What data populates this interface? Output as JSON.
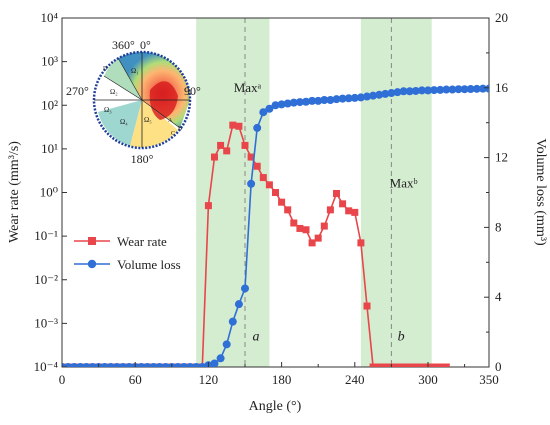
{
  "chart_data": {
    "type": "line",
    "xlabel": "Angle (°)",
    "y_left_label": "Wear rate (mm³/s)",
    "y_right_label": "Volume loss (mm³)",
    "xlim": [
      0,
      350
    ],
    "x_ticks": [
      0,
      60,
      120,
      180,
      240,
      300,
      350
    ],
    "y_left_log": true,
    "y_left_lim": [
      0.0001,
      10000
    ],
    "y_left_ticks": [
      {
        "value": 0.0001,
        "label": "10⁻⁴"
      },
      {
        "value": 0.001,
        "label": "10⁻³"
      },
      {
        "value": 0.01,
        "label": "10⁻²"
      },
      {
        "value": 0.1,
        "label": "10⁻¹"
      },
      {
        "value": 1,
        "label": "10⁰"
      },
      {
        "value": 10,
        "label": "10¹"
      },
      {
        "value": 100,
        "label": "10²"
      },
      {
        "value": 1000,
        "label": "10³"
      },
      {
        "value": 10000,
        "label": "10⁴"
      }
    ],
    "y_right_lim": [
      0,
      20
    ],
    "y_right_ticks": [
      0,
      4,
      8,
      12,
      16,
      20
    ],
    "shaded_regions": [
      {
        "from": 110,
        "to": 170,
        "color": "#d4ecd0"
      },
      {
        "from": 245,
        "to": 303,
        "color": "#d4ecd0"
      }
    ],
    "dashed_lines": [
      150,
      270
    ],
    "annotations": [
      {
        "text": "Maxᵃ",
        "x": 152,
        "y_log": 200
      },
      {
        "text": "Maxᵇ",
        "x": 280,
        "y_log": 1.3
      },
      {
        "text": "a",
        "x": 159,
        "y_log": 0.0004
      },
      {
        "text": "b",
        "x": 278,
        "y_log": 0.0004
      }
    ],
    "series": [
      {
        "name": "Wear rate",
        "axis": "left",
        "color": "#e8464a",
        "marker": "square",
        "x": [
          0,
          5,
          10,
          15,
          20,
          25,
          30,
          35,
          40,
          45,
          50,
          55,
          60,
          65,
          70,
          75,
          80,
          85,
          90,
          95,
          100,
          105,
          110,
          115,
          120,
          125,
          130,
          135,
          140,
          145,
          150,
          155,
          160,
          165,
          170,
          175,
          180,
          185,
          190,
          195,
          200,
          205,
          210,
          215,
          220,
          225,
          230,
          235,
          240,
          245,
          250,
          255,
          260,
          265,
          270,
          275,
          280,
          285,
          290,
          295,
          300,
          305,
          310,
          315
        ],
        "y": [
          0.0001,
          0.0001,
          0.0001,
          0.0001,
          0.0001,
          0.0001,
          0.0001,
          0.0001,
          0.0001,
          0.0001,
          0.0001,
          0.0001,
          0.0001,
          0.0001,
          0.0001,
          0.0001,
          0.0001,
          0.0001,
          0.0001,
          0.0001,
          0.0001,
          0.0001,
          0.0001,
          0.0001,
          0.5,
          6.5,
          12,
          9,
          35,
          33,
          12,
          6.5,
          4,
          2.2,
          1.5,
          1,
          0.6,
          0.4,
          0.2,
          0.15,
          0.14,
          0.07,
          0.09,
          0.17,
          0.4,
          0.95,
          0.55,
          0.38,
          0.35,
          0.07,
          0.0025,
          0.0001,
          0.0001,
          0.0001,
          0.0001,
          0.0001,
          0.0001,
          0.0001,
          0.0001,
          0.0001,
          0.0001,
          0.0001,
          0.0001,
          0.0001
        ]
      },
      {
        "name": "Volume loss",
        "axis": "right",
        "color": "#2f6fd6",
        "marker": "circle",
        "x": [
          0,
          5,
          10,
          15,
          20,
          25,
          30,
          35,
          40,
          45,
          50,
          55,
          60,
          65,
          70,
          75,
          80,
          85,
          90,
          95,
          100,
          105,
          110,
          115,
          120,
          125,
          130,
          135,
          140,
          145,
          150,
          155,
          160,
          165,
          170,
          175,
          180,
          185,
          190,
          195,
          200,
          205,
          210,
          215,
          220,
          225,
          230,
          235,
          240,
          245,
          250,
          255,
          260,
          265,
          270,
          275,
          280,
          285,
          290,
          295,
          300,
          305,
          310,
          315,
          320,
          325,
          330,
          335,
          340,
          345,
          350
        ],
        "y": [
          0,
          0,
          0,
          0,
          0,
          0,
          0,
          0,
          0,
          0,
          0,
          0,
          0,
          0,
          0,
          0,
          0,
          0,
          0,
          0,
          0,
          0,
          0,
          0,
          0.1,
          0.2,
          0.5,
          1.3,
          2.6,
          3.6,
          4.5,
          10.5,
          13.7,
          14.6,
          14.8,
          15,
          15.05,
          15.1,
          15.15,
          15.18,
          15.2,
          15.25,
          15.25,
          15.3,
          15.3,
          15.35,
          15.38,
          15.4,
          15.42,
          15.45,
          15.5,
          15.55,
          15.6,
          15.65,
          15.7,
          15.75,
          15.8,
          15.8,
          15.82,
          15.85,
          15.85,
          15.87,
          15.88,
          15.9,
          15.9,
          15.92,
          15.92,
          15.93,
          15.94,
          15.95,
          15.95
        ]
      }
    ],
    "legend": {
      "placement": "middle-left",
      "entries": [
        "Wear rate",
        "Volume loss"
      ]
    },
    "inset": {
      "type": "polar-heatmap",
      "angle_labels": [
        "360°",
        "0°",
        "90°",
        "180°",
        "270°"
      ],
      "region_labels": [
        "Ω₁",
        "Ω₂",
        "Ω₃",
        "Ω₄",
        "Ω₅",
        "D",
        "C",
        "B",
        "A"
      ]
    }
  }
}
